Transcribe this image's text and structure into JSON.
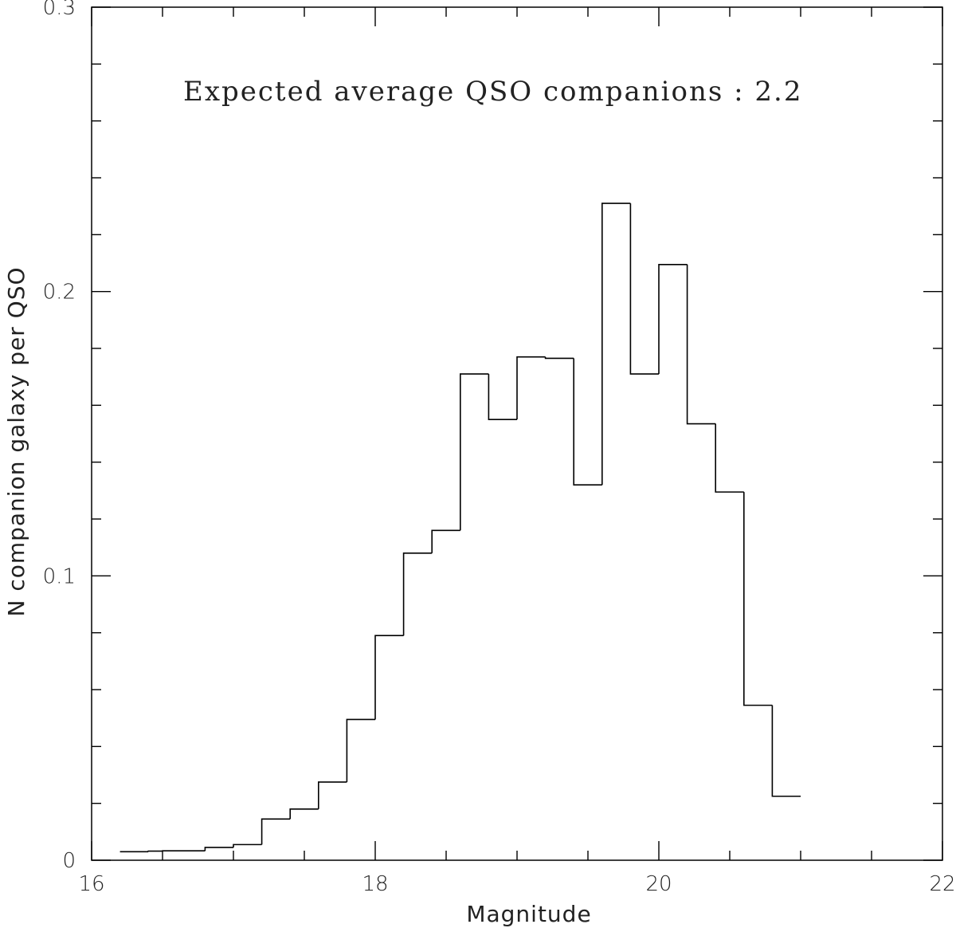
{
  "chart_data": {
    "type": "histogram",
    "xlabel": "Magnitude",
    "ylabel": "N companion galaxy per QSO",
    "xlim": [
      16,
      22
    ],
    "ylim": [
      0,
      0.3
    ],
    "x_major_ticks": [
      16,
      18,
      20,
      22
    ],
    "x_tick_labels": [
      "16",
      "18",
      "20",
      "22"
    ],
    "x_minor_step": 0.5,
    "y_major_ticks": [
      0,
      0.1,
      0.2,
      0.3
    ],
    "y_tick_labels": [
      "0",
      "0.1",
      "0.2",
      "0.3"
    ],
    "y_minor_step": 0.02,
    "annotation": "Expected average QSO companions :   2.2",
    "bins": [
      {
        "x0": 16.2,
        "x1": 16.4,
        "y": 0.003
      },
      {
        "x0": 16.4,
        "x1": 16.5,
        "y": 0.0032
      },
      {
        "x0": 16.5,
        "x1": 16.8,
        "y": 0.0033
      },
      {
        "x0": 16.8,
        "x1": 17.0,
        "y": 0.0045
      },
      {
        "x0": 17.0,
        "x1": 17.2,
        "y": 0.0055
      },
      {
        "x0": 17.2,
        "x1": 17.4,
        "y": 0.0145
      },
      {
        "x0": 17.4,
        "x1": 17.6,
        "y": 0.018
      },
      {
        "x0": 17.6,
        "x1": 17.8,
        "y": 0.0275
      },
      {
        "x0": 17.8,
        "x1": 18.0,
        "y": 0.0495
      },
      {
        "x0": 18.0,
        "x1": 18.2,
        "y": 0.079
      },
      {
        "x0": 18.2,
        "x1": 18.4,
        "y": 0.108
      },
      {
        "x0": 18.4,
        "x1": 18.6,
        "y": 0.116
      },
      {
        "x0": 18.6,
        "x1": 18.8,
        "y": 0.171
      },
      {
        "x0": 18.8,
        "x1": 19.0,
        "y": 0.155
      },
      {
        "x0": 19.0,
        "x1": 19.2,
        "y": 0.177
      },
      {
        "x0": 19.2,
        "x1": 19.4,
        "y": 0.1765
      },
      {
        "x0": 19.4,
        "x1": 19.6,
        "y": 0.132
      },
      {
        "x0": 19.6,
        "x1": 19.8,
        "y": 0.231
      },
      {
        "x0": 19.8,
        "x1": 20.0,
        "y": 0.171
      },
      {
        "x0": 20.0,
        "x1": 20.2,
        "y": 0.2095
      },
      {
        "x0": 20.2,
        "x1": 20.4,
        "y": 0.1535
      },
      {
        "x0": 20.4,
        "x1": 20.6,
        "y": 0.1295
      },
      {
        "x0": 20.6,
        "x1": 20.8,
        "y": 0.0545
      },
      {
        "x0": 20.8,
        "x1": 21.0,
        "y": 0.0225
      }
    ]
  }
}
